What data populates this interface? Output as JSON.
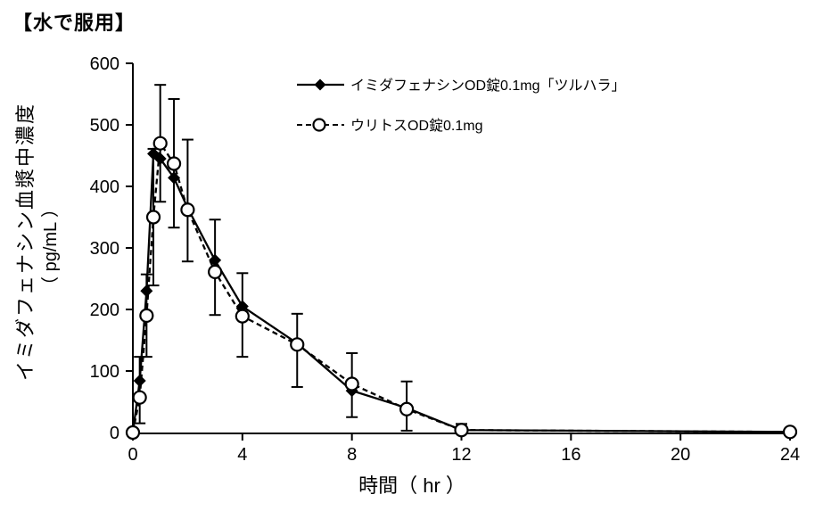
{
  "chart_data": {
    "type": "line",
    "title": "【水で服用】",
    "xlabel": "時間（ hr ）",
    "ylabel_line1": "イミダフェナシン血漿中濃度",
    "ylabel_line2": "（ pg/mL ）",
    "x": [
      0,
      0.25,
      0.5,
      0.75,
      1,
      1.5,
      2,
      3,
      4,
      6,
      8,
      10,
      12,
      24
    ],
    "series": [
      {
        "name": "イミダフェナシンOD錠0.1mg「ツルハラ」",
        "marker": "filled-diamond",
        "line_style": "solid",
        "color": "#000000",
        "values": [
          0,
          84,
          230,
          453,
          445,
          414,
          365,
          280,
          205,
          145,
          68,
          40,
          4,
          1
        ]
      },
      {
        "name": "ウリトスOD錠0.1mg",
        "marker": "open-circle",
        "line_style": "dashed",
        "color": "#000000",
        "values": [
          0,
          57,
          190,
          350,
          470,
          437,
          362,
          261,
          189,
          143,
          79,
          38,
          4,
          1
        ]
      }
    ],
    "error_bars": [
      {
        "x": 0.25,
        "low": 15,
        "high": 123
      },
      {
        "x": 0.5,
        "low": 123,
        "high": 257
      },
      {
        "x": 0.75,
        "low": 239,
        "high": 461
      },
      {
        "x": 1,
        "low": 375,
        "high": 565
      },
      {
        "x": 1.5,
        "low": 333,
        "high": 542
      },
      {
        "x": 2,
        "low": 278,
        "high": 476
      },
      {
        "x": 3,
        "low": 191,
        "high": 346
      },
      {
        "x": 4,
        "low": 123,
        "high": 259
      },
      {
        "x": 6,
        "low": 74,
        "high": 193
      },
      {
        "x": 8,
        "low": 25,
        "high": 129
      },
      {
        "x": 10,
        "low": 3,
        "high": 83
      },
      {
        "x": 12,
        "low": 0,
        "high": 14
      }
    ],
    "x_ticks": [
      0,
      4,
      8,
      12,
      16,
      20,
      24
    ],
    "y_ticks": [
      0,
      100,
      200,
      300,
      400,
      500,
      600
    ],
    "xlim": [
      0,
      24
    ],
    "ylim": [
      0,
      600
    ],
    "grid": false,
    "legend_position": "top-right-inside",
    "axis_color": "#000000",
    "background_color": "#ffffff"
  }
}
